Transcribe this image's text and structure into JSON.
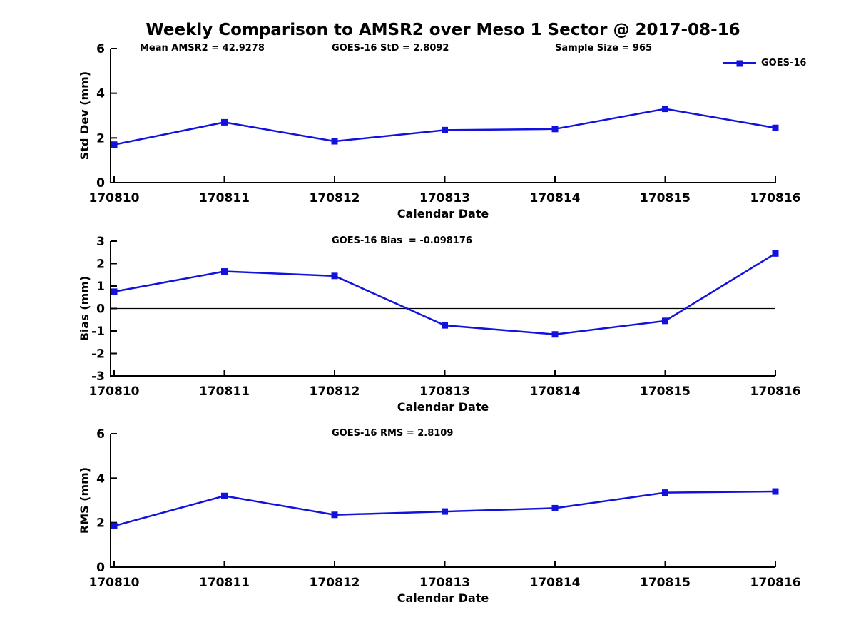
{
  "page": {
    "title": "Weekly Comparison to AMSR2 over Meso 1 Sector @ 2017-08-16"
  },
  "header_annotations": {
    "mean_amsr2": "Mean AMSR2 = 42.9278",
    "goes_std": "GOES-16 StD = 2.8092",
    "sample_size": "Sample Size = 965"
  },
  "legend": {
    "label": "GOES-16"
  },
  "colors": {
    "line": "#1212dd",
    "axis": "#000000",
    "zero_line": "#000000"
  },
  "chart_data": [
    {
      "type": "line",
      "title": "",
      "categories": [
        "170810",
        "170811",
        "170812",
        "170813",
        "170814",
        "170815",
        "170816"
      ],
      "series": [
        {
          "name": "GOES-16",
          "values": [
            1.7,
            2.7,
            1.85,
            2.35,
            2.4,
            3.3,
            2.45
          ]
        }
      ],
      "xlabel": "Calendar Date",
      "ylabel": "Std Dev (mm)",
      "ylim": [
        0,
        6
      ],
      "yticks": [
        0,
        2,
        4,
        6
      ],
      "zero_line": false,
      "grid": false,
      "legend_position": "top-right"
    },
    {
      "type": "line",
      "title": "GOES-16 Bias  = -0.098176",
      "categories": [
        "170810",
        "170811",
        "170812",
        "170813",
        "170814",
        "170815",
        "170816"
      ],
      "series": [
        {
          "name": "GOES-16",
          "values": [
            0.75,
            1.65,
            1.45,
            -0.75,
            -1.15,
            -0.55,
            2.45
          ]
        }
      ],
      "xlabel": "Calendar Date",
      "ylabel": "Bias (mm)",
      "ylim": [
        -3,
        3
      ],
      "yticks": [
        -3,
        -2,
        -1,
        0,
        1,
        2,
        3
      ],
      "zero_line": true,
      "grid": false,
      "legend_position": "none"
    },
    {
      "type": "line",
      "title": "GOES-16 RMS = 2.8109",
      "categories": [
        "170810",
        "170811",
        "170812",
        "170813",
        "170814",
        "170815",
        "170816"
      ],
      "series": [
        {
          "name": "GOES-16",
          "values": [
            1.85,
            3.2,
            2.35,
            2.5,
            2.65,
            3.35,
            3.4
          ]
        }
      ],
      "xlabel": "Calendar Date",
      "ylabel": "RMS (mm)",
      "ylim": [
        0,
        6
      ],
      "yticks": [
        0,
        2,
        4,
        6
      ],
      "zero_line": false,
      "grid": false,
      "legend_position": "none"
    }
  ]
}
